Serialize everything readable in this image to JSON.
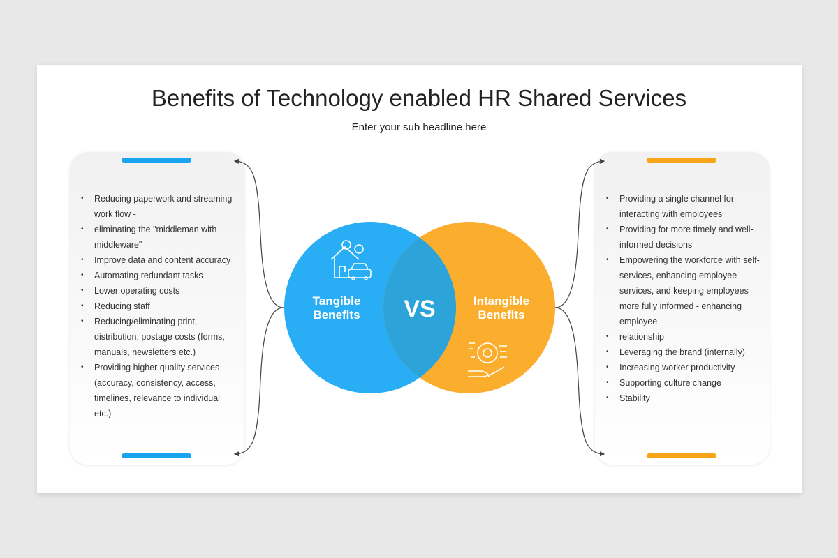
{
  "title": "Benefits of Technology enabled HR Shared Services",
  "subtitle": "Enter your sub headline here",
  "colors": {
    "tangible": "#29aef6",
    "intangible": "#fbae2d",
    "overlap": "#2ca3d9"
  },
  "center": {
    "vs": "VS"
  },
  "tangible": {
    "label_line1": "Tangible",
    "label_line2": "Benefits",
    "icon": "house-car-money-icon",
    "items": [
      "Reducing paperwork and streaming work flow -",
      "eliminating the \"middleman with middleware\"",
      "Improve data and content accuracy",
      "Automating redundant tasks",
      "Lower operating costs",
      "Reducing staff",
      "Reducing/eliminating print, distribution, postage costs (forms, manuals, newsletters etc.)",
      "Providing higher quality services (accuracy, consistency, access, timelines, relevance to individual etc.)"
    ]
  },
  "intangible": {
    "label_line1": "Intangible",
    "label_line2": "Benefits",
    "icon": "hand-brain-icon",
    "items": [
      "Providing a single channel for interacting with employees",
      "Providing for more timely and well-informed decisions",
      "Empowering the workforce with self-services, enhancing employee services, and keeping employees more fully informed - enhancing employee",
      "relationship",
      "Leveraging the brand (internally)",
      "Increasing worker productivity",
      "Supporting culture change",
      "Stability"
    ]
  }
}
